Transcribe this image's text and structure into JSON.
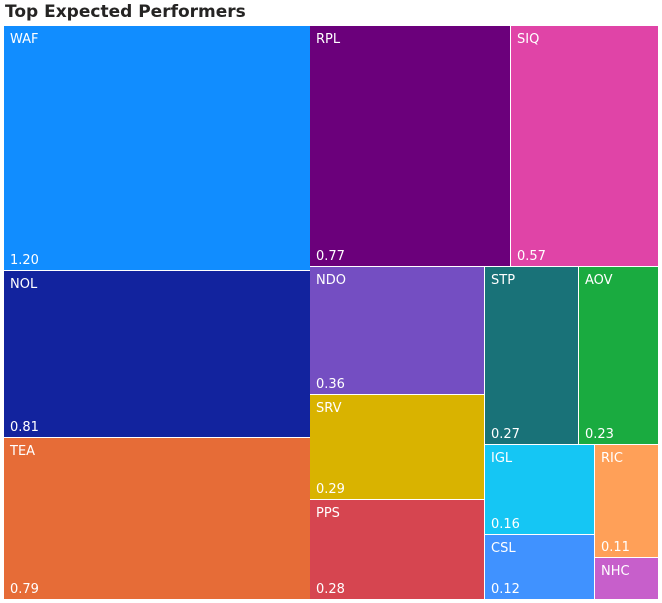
{
  "chart_data": {
    "type": "treemap",
    "title": "Top Expected Performers",
    "items": [
      {
        "name": "WAF",
        "value": 1.2,
        "label": "1.20",
        "color": "#118DFF"
      },
      {
        "name": "RPL",
        "value": 0.77,
        "label": "0.77",
        "color": "#6B007B"
      },
      {
        "name": "SIQ",
        "value": 0.57,
        "label": "0.57",
        "color": "#E044A7"
      },
      {
        "name": "NOL",
        "value": 0.81,
        "label": "0.81",
        "color": "#12239E"
      },
      {
        "name": "TEA",
        "value": 0.79,
        "label": "0.79",
        "color": "#E66C37"
      },
      {
        "name": "NDO",
        "value": 0.36,
        "label": "0.36",
        "color": "#744EC2"
      },
      {
        "name": "STP",
        "value": 0.27,
        "label": "0.27",
        "color": "#197278"
      },
      {
        "name": "AOV",
        "value": 0.23,
        "label": "0.23",
        "color": "#1AAB40"
      },
      {
        "name": "SRV",
        "value": 0.29,
        "label": "0.29",
        "color": "#D9B300"
      },
      {
        "name": "PPS",
        "value": 0.28,
        "label": "0.28",
        "color": "#D64550"
      },
      {
        "name": "IGL",
        "value": 0.16,
        "label": "0.16",
        "color": "#15C6F4"
      },
      {
        "name": "RIC",
        "value": 0.11,
        "label": "0.11",
        "color": "#FFA058"
      },
      {
        "name": "CSL",
        "value": 0.12,
        "label": "0.12",
        "color": "#4092FF"
      },
      {
        "name": "NHC",
        "value": null,
        "label": "",
        "color": "#C75FCB"
      }
    ]
  }
}
